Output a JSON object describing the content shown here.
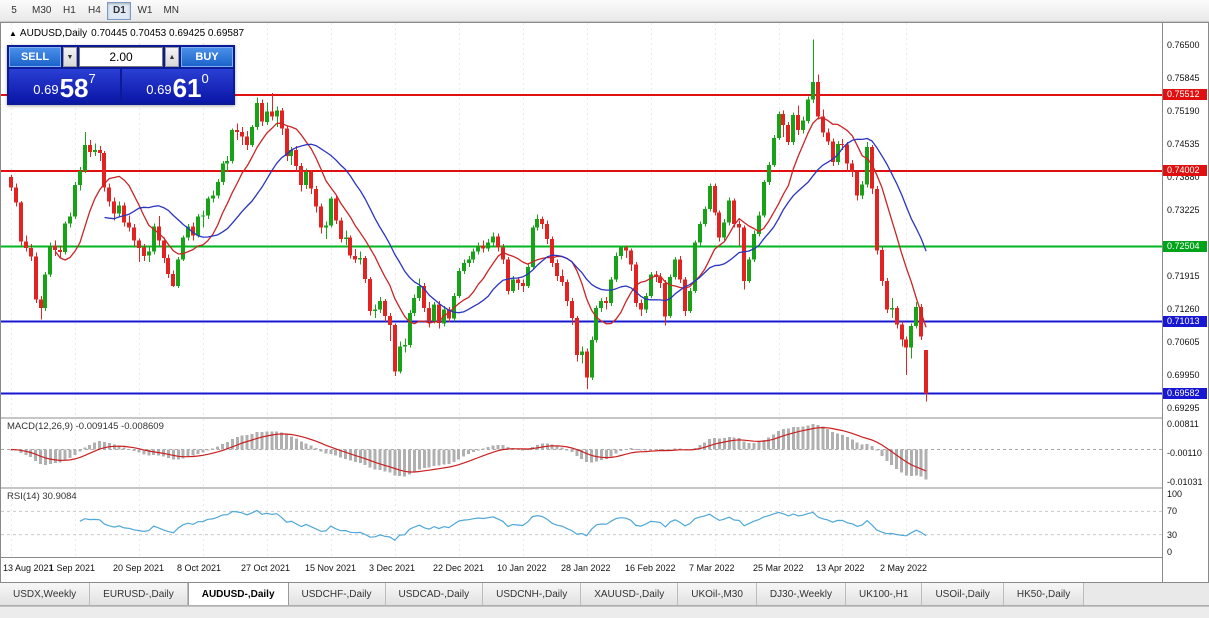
{
  "toolbar": {
    "items": [
      "5",
      "M30",
      "H1",
      "H4",
      "D1",
      "W1",
      "MN"
    ],
    "active": "D1"
  },
  "chart": {
    "header": {
      "collapse_icon": "▲",
      "title": "AUDUSD,Daily",
      "ohlc": "0.70445 0.70453 0.69425 0.69587"
    }
  },
  "trade_panel": {
    "sell_label": "SELL",
    "buy_label": "BUY",
    "volume": "2.00",
    "spin_down_icon": "▼",
    "spin_up_icon": "▲",
    "sell_price": {
      "small": "0.69",
      "big": "58",
      "sup": "7"
    },
    "buy_price": {
      "small": "0.69",
      "big": "61",
      "sup": "0"
    }
  },
  "price_axis": {
    "ticks": [
      "0.76500",
      "0.75845",
      "0.75190",
      "0.74535",
      "0.73880",
      "0.73225",
      "0.71915",
      "0.71260",
      "0.70605",
      "0.69950",
      "0.69295"
    ],
    "badges": [
      {
        "text": "0.75512",
        "price": 0.75512,
        "color": "#e11010"
      },
      {
        "text": "0.74002",
        "price": 0.74002,
        "color": "#e11010"
      },
      {
        "text": "0.72504",
        "price": 0.72504,
        "color": "#00a41a"
      },
      {
        "text": "0.71013",
        "price": 0.71013,
        "color": "#1717d2"
      },
      {
        "text": "0.69582",
        "price": 0.69582,
        "color": "#1717d2"
      }
    ]
  },
  "hlines": [
    {
      "price": 0.75512,
      "color": "#e11010",
      "width": 2
    },
    {
      "price": 0.74002,
      "color": "#e11010",
      "width": 2
    },
    {
      "price": 0.72504,
      "color": "#00b61e",
      "width": 2
    },
    {
      "price": 0.71013,
      "color": "#1717d2",
      "width": 2
    },
    {
      "price": 0.69582,
      "color": "#1717d2",
      "width": 2
    }
  ],
  "macd": {
    "label": "MACD(12,26,9) -0.009145 -0.008609",
    "params": [
      12,
      26,
      9
    ],
    "values": {
      "macd": -0.009145,
      "signal": -0.008609
    },
    "range": [
      -0.01031,
      0.00811
    ],
    "axis": [
      {
        "text": "0.00811",
        "value": 0.00811
      },
      {
        "text": "-0.00110",
        "value": -0.0011
      },
      {
        "text": "-0.01031",
        "value": -0.01031
      }
    ],
    "hist_color": "#b0b0b0",
    "signal_color": "#cc2020"
  },
  "rsi": {
    "label": "RSI(14) 30.9084",
    "period": 14,
    "value": 30.9084,
    "axis": [
      {
        "text": "100",
        "value": 100
      },
      {
        "text": "70",
        "value": 70
      },
      {
        "text": "30",
        "value": 30
      },
      {
        "text": "0",
        "value": 0
      }
    ],
    "levels": [
      70,
      30
    ],
    "color": "#4fa8d8"
  },
  "tabs": {
    "active_index": 2,
    "items": [
      "USDX,Weekly",
      "EURUSD-,Daily",
      "AUDUSD-,Daily",
      "USDCHF-,Daily",
      "USDCAD-,Daily",
      "USDCNH-,Daily",
      "XAUUSD-,Daily",
      "UKOil-,M30",
      "DJ30-,Weekly",
      "UK100-,H1",
      "USOil-,Daily",
      "HK50-,Daily"
    ]
  },
  "chart_data": {
    "type": "candlestick",
    "symbol": "AUDUSD",
    "timeframe": "Daily",
    "last_ohlc": {
      "open": 0.70445,
      "high": 0.70453,
      "low": 0.69425,
      "close": 0.69587
    },
    "y_range": [
      0.6912,
      0.7694
    ],
    "colors": {
      "bull": "#17a217",
      "bear": "#e32222"
    },
    "overlays": [
      {
        "name": "ma-fast",
        "type": "sma",
        "period": 10,
        "color": "#c92525"
      },
      {
        "name": "ma-slow",
        "type": "sma",
        "period": 20,
        "color": "#2b35c0"
      }
    ],
    "x_labels": [
      "13 Aug 2021",
      "1 Sep 2021",
      "20 Sep 2021",
      "8 Oct 2021",
      "27 Oct 2021",
      "15 Nov 2021",
      "3 Dec 2021",
      "22 Dec 2021",
      "10 Jan 2022",
      "28 Jan 2022",
      "16 Feb 2022",
      "7 Mar 2022",
      "25 Mar 2022",
      "13 Apr 2022",
      "2 May 2022"
    ],
    "candles_per_label": 13,
    "candles": [
      [
        0.7388,
        0.7392,
        0.7361,
        0.7368
      ],
      [
        0.7368,
        0.7375,
        0.733,
        0.7338
      ],
      [
        0.7338,
        0.7341,
        0.7252,
        0.726
      ],
      [
        0.726,
        0.7272,
        0.724,
        0.7247
      ],
      [
        0.7247,
        0.7255,
        0.7222,
        0.7231
      ],
      [
        0.7231,
        0.7238,
        0.7138,
        0.7145
      ],
      [
        0.7145,
        0.7152,
        0.7106,
        0.7128
      ],
      [
        0.7128,
        0.72,
        0.7122,
        0.7195
      ],
      [
        0.7195,
        0.7258,
        0.719,
        0.7252
      ],
      [
        0.7252,
        0.7262,
        0.7232,
        0.7243
      ],
      [
        0.7243,
        0.7252,
        0.7228,
        0.7239
      ],
      [
        0.7239,
        0.73,
        0.7235,
        0.7296
      ],
      [
        0.7296,
        0.7318,
        0.7288,
        0.731
      ],
      [
        0.731,
        0.7378,
        0.7305,
        0.7372
      ],
      [
        0.7372,
        0.7408,
        0.7362,
        0.74
      ],
      [
        0.74,
        0.7478,
        0.7396,
        0.7452
      ],
      [
        0.7452,
        0.7462,
        0.7428,
        0.7438
      ],
      [
        0.7438,
        0.7455,
        0.743,
        0.7442
      ],
      [
        0.7442,
        0.745,
        0.742,
        0.7436
      ],
      [
        0.7436,
        0.744,
        0.736,
        0.7368
      ],
      [
        0.7368,
        0.7375,
        0.733,
        0.734
      ],
      [
        0.734,
        0.7348,
        0.7302,
        0.7316
      ],
      [
        0.7316,
        0.734,
        0.731,
        0.7332
      ],
      [
        0.7332,
        0.7338,
        0.729,
        0.7298
      ],
      [
        0.7298,
        0.7312,
        0.728,
        0.7288
      ],
      [
        0.7288,
        0.7295,
        0.725,
        0.7262
      ],
      [
        0.7262,
        0.7266,
        0.722,
        0.7248
      ],
      [
        0.7248,
        0.7255,
        0.7222,
        0.7232
      ],
      [
        0.7232,
        0.7248,
        0.722,
        0.724
      ],
      [
        0.724,
        0.7296,
        0.7235,
        0.729
      ],
      [
        0.729,
        0.7311,
        0.7252,
        0.7262
      ],
      [
        0.7262,
        0.7268,
        0.7218,
        0.7228
      ],
      [
        0.7228,
        0.7235,
        0.7188,
        0.7196
      ],
      [
        0.7196,
        0.7203,
        0.717,
        0.7172
      ],
      [
        0.7172,
        0.723,
        0.7168,
        0.7225
      ],
      [
        0.7225,
        0.7272,
        0.7222,
        0.7268
      ],
      [
        0.7268,
        0.7295,
        0.7262,
        0.729
      ],
      [
        0.729,
        0.7298,
        0.7262,
        0.7272
      ],
      [
        0.7272,
        0.7315,
        0.7268,
        0.731
      ],
      [
        0.731,
        0.7322,
        0.7288,
        0.7312
      ],
      [
        0.7312,
        0.735,
        0.7305,
        0.7346
      ],
      [
        0.7346,
        0.7362,
        0.7338,
        0.7352
      ],
      [
        0.7352,
        0.7384,
        0.7346,
        0.7378
      ],
      [
        0.7378,
        0.742,
        0.7372,
        0.7415
      ],
      [
        0.7415,
        0.743,
        0.7398,
        0.742
      ],
      [
        0.742,
        0.7485,
        0.7415,
        0.7482
      ],
      [
        0.7482,
        0.7495,
        0.7462,
        0.7478
      ],
      [
        0.7478,
        0.7488,
        0.7452,
        0.7469
      ],
      [
        0.7469,
        0.748,
        0.7442,
        0.7452
      ],
      [
        0.7452,
        0.7492,
        0.7448,
        0.7488
      ],
      [
        0.7488,
        0.7546,
        0.7482,
        0.7535
      ],
      [
        0.7535,
        0.7542,
        0.749,
        0.7498
      ],
      [
        0.7498,
        0.7536,
        0.7492,
        0.7518
      ],
      [
        0.7518,
        0.7555,
        0.75,
        0.7508
      ],
      [
        0.7508,
        0.7528,
        0.7488,
        0.752
      ],
      [
        0.752,
        0.7525,
        0.7472,
        0.7485
      ],
      [
        0.7485,
        0.749,
        0.742,
        0.743
      ],
      [
        0.743,
        0.7448,
        0.7412,
        0.7442
      ],
      [
        0.7442,
        0.745,
        0.7398,
        0.741
      ],
      [
        0.741,
        0.7416,
        0.736,
        0.7372
      ],
      [
        0.7372,
        0.7405,
        0.7365,
        0.7398
      ],
      [
        0.7398,
        0.7402,
        0.7355,
        0.7365
      ],
      [
        0.7365,
        0.737,
        0.7318,
        0.733
      ],
      [
        0.733,
        0.7336,
        0.7276,
        0.7288
      ],
      [
        0.7288,
        0.73,
        0.7265,
        0.7292
      ],
      [
        0.7292,
        0.735,
        0.7288,
        0.7346
      ],
      [
        0.7346,
        0.7352,
        0.7295,
        0.7302
      ],
      [
        0.7302,
        0.7308,
        0.7258,
        0.7265
      ],
      [
        0.7265,
        0.7282,
        0.7253,
        0.7268
      ],
      [
        0.7268,
        0.7272,
        0.7227,
        0.7232
      ],
      [
        0.7232,
        0.7245,
        0.7218,
        0.7225
      ],
      [
        0.7225,
        0.724,
        0.7215,
        0.7228
      ],
      [
        0.7228,
        0.7232,
        0.7178,
        0.7186
      ],
      [
        0.7186,
        0.719,
        0.7113,
        0.7122
      ],
      [
        0.7122,
        0.7135,
        0.7108,
        0.7125
      ],
      [
        0.7125,
        0.715,
        0.7118,
        0.7142
      ],
      [
        0.7142,
        0.7146,
        0.7102,
        0.7112
      ],
      [
        0.7112,
        0.7118,
        0.7063,
        0.7095
      ],
      [
        0.7095,
        0.7098,
        0.6993,
        0.7002
      ],
      [
        0.7002,
        0.7062,
        0.6998,
        0.7052
      ],
      [
        0.7052,
        0.7068,
        0.704,
        0.7055
      ],
      [
        0.7055,
        0.7124,
        0.705,
        0.7118
      ],
      [
        0.7118,
        0.7155,
        0.7112,
        0.7148
      ],
      [
        0.7148,
        0.7187,
        0.7142,
        0.7172
      ],
      [
        0.7172,
        0.7178,
        0.712,
        0.7128
      ],
      [
        0.7128,
        0.714,
        0.709,
        0.7102
      ],
      [
        0.7102,
        0.714,
        0.7098,
        0.7135
      ],
      [
        0.7135,
        0.7142,
        0.7088,
        0.7098
      ],
      [
        0.7098,
        0.7132,
        0.7092,
        0.7125
      ],
      [
        0.7125,
        0.713,
        0.71,
        0.7108
      ],
      [
        0.7108,
        0.7158,
        0.7102,
        0.7152
      ],
      [
        0.7152,
        0.7208,
        0.7148,
        0.7202
      ],
      [
        0.7202,
        0.7225,
        0.7196,
        0.7218
      ],
      [
        0.7218,
        0.7232,
        0.721,
        0.7225
      ],
      [
        0.7225,
        0.7246,
        0.7218,
        0.724
      ],
      [
        0.724,
        0.7258,
        0.7235,
        0.7252
      ],
      [
        0.7252,
        0.7262,
        0.7238,
        0.7246
      ],
      [
        0.7246,
        0.7265,
        0.724,
        0.7258
      ],
      [
        0.7258,
        0.7278,
        0.7252,
        0.727
      ],
      [
        0.727,
        0.7276,
        0.724,
        0.7248
      ],
      [
        0.7248,
        0.7255,
        0.7216,
        0.7225
      ],
      [
        0.7225,
        0.723,
        0.7155,
        0.7162
      ],
      [
        0.7162,
        0.7192,
        0.7158,
        0.7185
      ],
      [
        0.7185,
        0.719,
        0.7164,
        0.7178
      ],
      [
        0.7178,
        0.7185,
        0.716,
        0.7172
      ],
      [
        0.7172,
        0.7215,
        0.7168,
        0.721
      ],
      [
        0.721,
        0.7292,
        0.7205,
        0.7288
      ],
      [
        0.7288,
        0.7314,
        0.7282,
        0.7305
      ],
      [
        0.7305,
        0.731,
        0.7285,
        0.7295
      ],
      [
        0.7295,
        0.7302,
        0.7255,
        0.7265
      ],
      [
        0.7265,
        0.727,
        0.721,
        0.7218
      ],
      [
        0.7218,
        0.7225,
        0.7182,
        0.7192
      ],
      [
        0.7192,
        0.7205,
        0.7172,
        0.718
      ],
      [
        0.718,
        0.7185,
        0.7132,
        0.7142
      ],
      [
        0.7142,
        0.7148,
        0.7095,
        0.7108
      ],
      [
        0.7108,
        0.7112,
        0.7022,
        0.7035
      ],
      [
        0.7035,
        0.7052,
        0.7018,
        0.7042
      ],
      [
        0.7042,
        0.7048,
        0.6968,
        0.699
      ],
      [
        0.699,
        0.7072,
        0.6985,
        0.7065
      ],
      [
        0.7065,
        0.7133,
        0.706,
        0.7128
      ],
      [
        0.7128,
        0.7148,
        0.712,
        0.7142
      ],
      [
        0.7142,
        0.715,
        0.7125,
        0.7138
      ],
      [
        0.7138,
        0.719,
        0.7132,
        0.7185
      ],
      [
        0.7185,
        0.7238,
        0.718,
        0.7232
      ],
      [
        0.7232,
        0.725,
        0.7225,
        0.7248
      ],
      [
        0.7248,
        0.7252,
        0.7228,
        0.7242
      ],
      [
        0.7242,
        0.7246,
        0.7202,
        0.7215
      ],
      [
        0.7215,
        0.722,
        0.713,
        0.7138
      ],
      [
        0.7138,
        0.7145,
        0.7112,
        0.7125
      ],
      [
        0.7125,
        0.7158,
        0.7118,
        0.7152
      ],
      [
        0.7152,
        0.72,
        0.7148,
        0.7195
      ],
      [
        0.7195,
        0.7202,
        0.718,
        0.719
      ],
      [
        0.719,
        0.7198,
        0.7168,
        0.7178
      ],
      [
        0.7178,
        0.7184,
        0.7094,
        0.7112
      ],
      [
        0.7112,
        0.7195,
        0.7108,
        0.719
      ],
      [
        0.719,
        0.723,
        0.7185,
        0.7225
      ],
      [
        0.7225,
        0.7232,
        0.7178,
        0.7185
      ],
      [
        0.7185,
        0.719,
        0.7112,
        0.7122
      ],
      [
        0.7122,
        0.7168,
        0.7118,
        0.7162
      ],
      [
        0.7162,
        0.7262,
        0.7158,
        0.7258
      ],
      [
        0.7258,
        0.73,
        0.7252,
        0.7295
      ],
      [
        0.7295,
        0.733,
        0.729,
        0.7325
      ],
      [
        0.7325,
        0.7375,
        0.732,
        0.737
      ],
      [
        0.737,
        0.7375,
        0.7312,
        0.7318
      ],
      [
        0.7318,
        0.7322,
        0.726,
        0.7268
      ],
      [
        0.7268,
        0.7305,
        0.7262,
        0.7298
      ],
      [
        0.7298,
        0.7348,
        0.7292,
        0.7342
      ],
      [
        0.7342,
        0.7346,
        0.7288,
        0.7295
      ],
      [
        0.7295,
        0.7302,
        0.7252,
        0.7288
      ],
      [
        0.7288,
        0.7292,
        0.7165,
        0.7182
      ],
      [
        0.7182,
        0.723,
        0.7178,
        0.7225
      ],
      [
        0.7225,
        0.7282,
        0.722,
        0.7275
      ],
      [
        0.7275,
        0.732,
        0.727,
        0.7312
      ],
      [
        0.7312,
        0.7382,
        0.7308,
        0.7378
      ],
      [
        0.7378,
        0.7418,
        0.7372,
        0.7412
      ],
      [
        0.7412,
        0.7472,
        0.7408,
        0.7466
      ],
      [
        0.7466,
        0.7518,
        0.7462,
        0.7513
      ],
      [
        0.7513,
        0.752,
        0.7468,
        0.7492
      ],
      [
        0.7492,
        0.7498,
        0.7452,
        0.7458
      ],
      [
        0.7458,
        0.7516,
        0.7452,
        0.7511
      ],
      [
        0.7511,
        0.753,
        0.7472,
        0.7482
      ],
      [
        0.7482,
        0.7508,
        0.7475,
        0.75
      ],
      [
        0.75,
        0.7548,
        0.7495,
        0.7542
      ],
      [
        0.7542,
        0.7661,
        0.7535,
        0.7577
      ],
      [
        0.7577,
        0.7592,
        0.7502,
        0.7508
      ],
      [
        0.7508,
        0.7522,
        0.7468,
        0.7477
      ],
      [
        0.7477,
        0.7485,
        0.7452,
        0.7459
      ],
      [
        0.7459,
        0.7465,
        0.741,
        0.7418
      ],
      [
        0.7418,
        0.746,
        0.7412,
        0.7454
      ],
      [
        0.7454,
        0.7464,
        0.7442,
        0.7453
      ],
      [
        0.7453,
        0.7458,
        0.7398,
        0.7415
      ],
      [
        0.7415,
        0.7422,
        0.7388,
        0.7398
      ],
      [
        0.7398,
        0.7402,
        0.7342,
        0.7352
      ],
      [
        0.7352,
        0.738,
        0.7345,
        0.7373
      ],
      [
        0.7373,
        0.7458,
        0.7368,
        0.7448
      ],
      [
        0.7448,
        0.7452,
        0.7355,
        0.7365
      ],
      [
        0.7365,
        0.737,
        0.7235,
        0.7243
      ],
      [
        0.7243,
        0.7248,
        0.7172,
        0.7182
      ],
      [
        0.7182,
        0.7188,
        0.7118,
        0.7125
      ],
      [
        0.7125,
        0.7148,
        0.7108,
        0.7128
      ],
      [
        0.7128,
        0.7132,
        0.7088,
        0.7096
      ],
      [
        0.7096,
        0.7102,
        0.7052,
        0.7066
      ],
      [
        0.7066,
        0.7072,
        0.6995,
        0.705
      ],
      [
        0.705,
        0.7098,
        0.7028,
        0.7093
      ],
      [
        0.7093,
        0.714,
        0.7088,
        0.713
      ],
      [
        0.713,
        0.7136,
        0.7065,
        0.7072
      ],
      [
        0.70445,
        0.70453,
        0.69425,
        0.69587
      ]
    ]
  }
}
